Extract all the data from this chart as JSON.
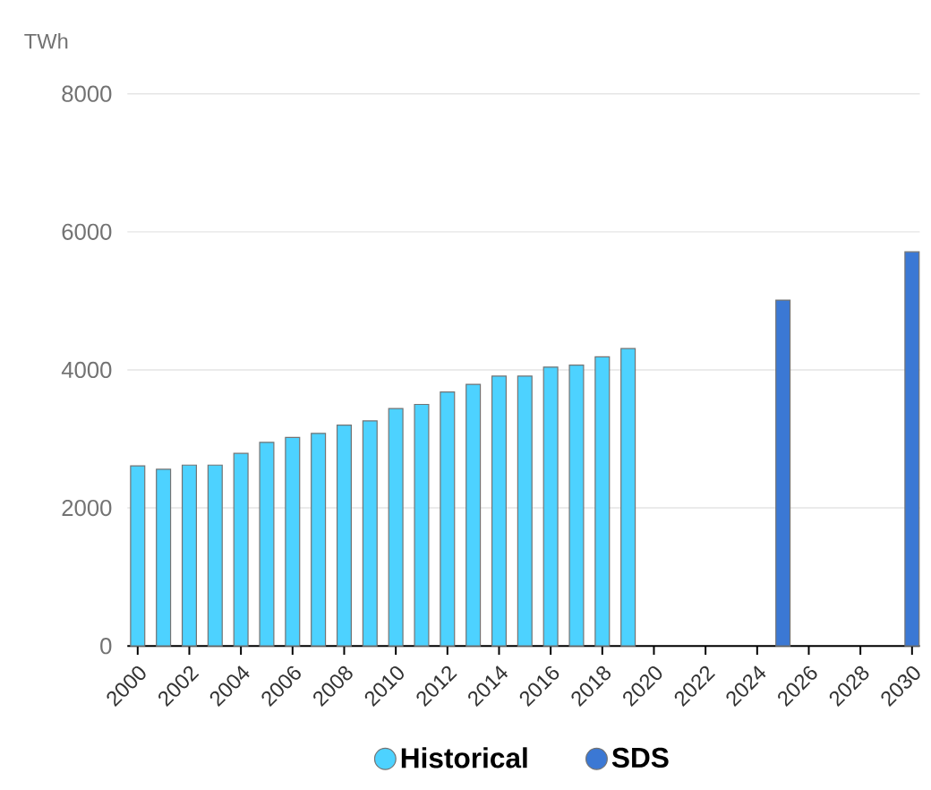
{
  "chart_data": {
    "type": "bar",
    "ylabel": "TWh",
    "series": [
      {
        "name": "Historical",
        "color": "#4dd2ff",
        "x": [
          2000,
          2001,
          2002,
          2003,
          2004,
          2005,
          2006,
          2007,
          2008,
          2009,
          2010,
          2011,
          2012,
          2013,
          2014,
          2015,
          2016,
          2017,
          2018,
          2019
        ],
        "values": [
          2610,
          2560,
          2620,
          2620,
          2790,
          2950,
          3020,
          3080,
          3200,
          3260,
          3440,
          3500,
          3680,
          3790,
          3910,
          3910,
          4040,
          4070,
          4190,
          4310
        ]
      },
      {
        "name": "SDS",
        "color": "#3b78d4",
        "x": [
          2025,
          2030
        ],
        "values": [
          5010,
          5710
        ]
      }
    ],
    "xlim": [
      1999.6,
      2030.3
    ],
    "ylim": [
      0,
      8000
    ],
    "xticks": [
      2000,
      2002,
      2004,
      2006,
      2008,
      2010,
      2012,
      2014,
      2016,
      2018,
      2020,
      2022,
      2024,
      2026,
      2028,
      2030
    ],
    "yticks": [
      0,
      2000,
      4000,
      6000,
      8000
    ],
    "grid": "y",
    "legend": "bottom"
  }
}
